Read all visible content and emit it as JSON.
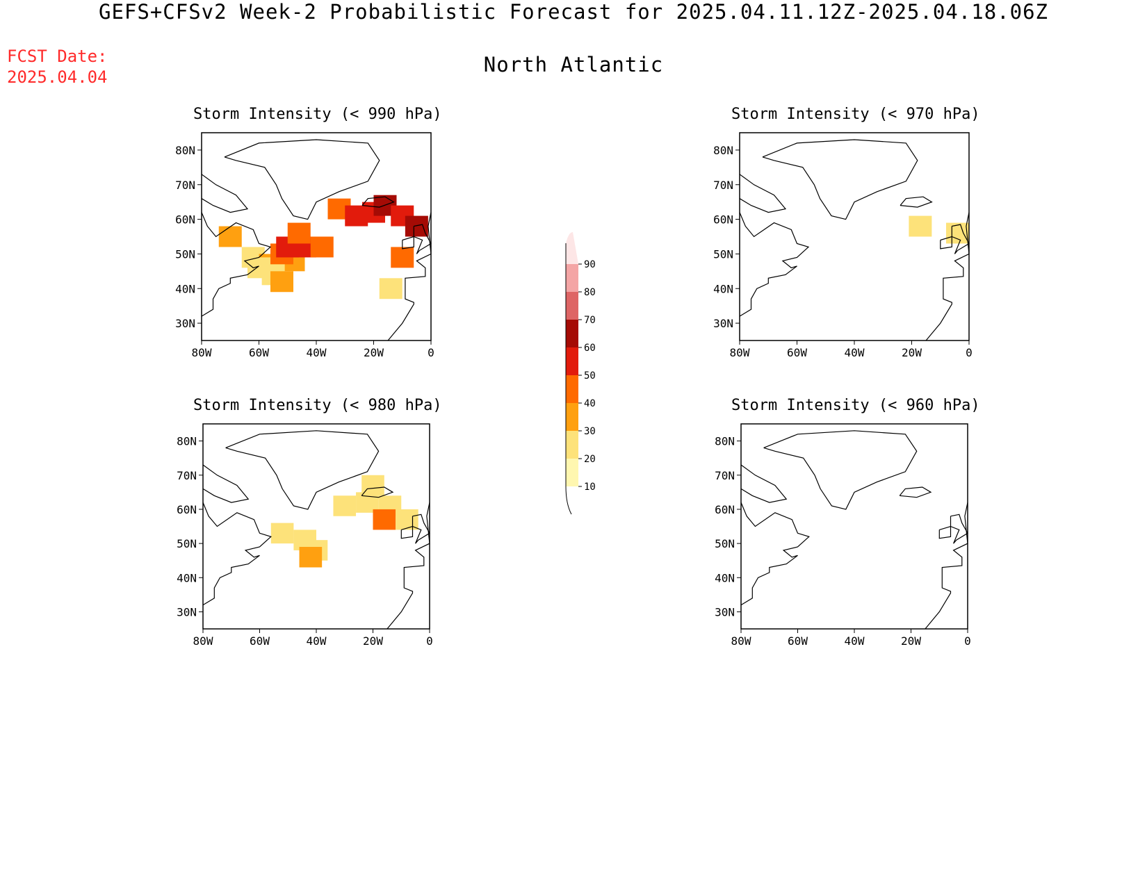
{
  "header": {
    "title": "GEFS+CFSv2 Week-2 Probabilistic Forecast for 2025.04.11.12Z-2025.04.18.06Z",
    "subtitle": "North Atlantic",
    "fcst_label": "FCST Date:",
    "fcst_date": "2025.04.04"
  },
  "panels": [
    {
      "id": "p990",
      "title": "Storm Intensity (< 990 hPa)"
    },
    {
      "id": "p970",
      "title": "Storm Intensity (< 970 hPa)"
    },
    {
      "id": "p980",
      "title": "Storm Intensity (< 980 hPa)"
    },
    {
      "id": "p960",
      "title": "Storm Intensity (< 960 hPa)"
    }
  ],
  "axes": {
    "lat_ticks": [
      "80N",
      "70N",
      "60N",
      "50N",
      "40N",
      "30N"
    ],
    "lon_ticks": [
      "80W",
      "60W",
      "40W",
      "20W",
      "0"
    ],
    "lat_range": [
      25,
      85
    ],
    "lon_range": [
      -80,
      0
    ]
  },
  "colorbar": {
    "levels": [
      "10",
      "20",
      "30",
      "40",
      "50",
      "60",
      "70",
      "80",
      "90"
    ],
    "colors": [
      "#fff7b0",
      "#fde27a",
      "#ffa010",
      "#ff6a00",
      "#e21b0c",
      "#a50b05",
      "#de6565",
      "#f4a5a5",
      "#fde6e6"
    ]
  },
  "map_data": {
    "p990": [
      {
        "lon": -62,
        "lat": 49,
        "level": 1
      },
      {
        "lon": -56,
        "lat": 47,
        "level": 2
      },
      {
        "lon": -48,
        "lat": 48,
        "level": 2
      },
      {
        "lon": -52,
        "lat": 50,
        "level": 3
      },
      {
        "lon": -50,
        "lat": 52,
        "level": 4
      },
      {
        "lon": -44,
        "lat": 52,
        "level": 4
      },
      {
        "lon": -38,
        "lat": 52,
        "level": 3
      },
      {
        "lon": -55,
        "lat": 44,
        "level": 1
      },
      {
        "lon": -52,
        "lat": 42,
        "level": 2
      },
      {
        "lon": -60,
        "lat": 46,
        "level": 1
      },
      {
        "lon": -46,
        "lat": 56,
        "level": 3
      },
      {
        "lon": -32,
        "lat": 63,
        "level": 3
      },
      {
        "lon": -26,
        "lat": 61,
        "level": 4
      },
      {
        "lon": -20,
        "lat": 62,
        "level": 4
      },
      {
        "lon": -16,
        "lat": 64,
        "level": 5
      },
      {
        "lon": -10,
        "lat": 61,
        "level": 4
      },
      {
        "lon": -5,
        "lat": 58,
        "level": 5
      },
      {
        "lon": -10,
        "lat": 49,
        "level": 3
      },
      {
        "lon": -14,
        "lat": 40,
        "level": 1
      },
      {
        "lon": -70,
        "lat": 55,
        "level": 2
      }
    ],
    "p970": [
      {
        "lon": -17,
        "lat": 58,
        "level": 1
      },
      {
        "lon": -4,
        "lat": 56,
        "level": 1
      }
    ],
    "p980": [
      {
        "lon": -52,
        "lat": 53,
        "level": 1
      },
      {
        "lon": -44,
        "lat": 51,
        "level": 1
      },
      {
        "lon": -40,
        "lat": 48,
        "level": 1
      },
      {
        "lon": -42,
        "lat": 46,
        "level": 2
      },
      {
        "lon": -30,
        "lat": 61,
        "level": 1
      },
      {
        "lon": -22,
        "lat": 62,
        "level": 1
      },
      {
        "lon": -14,
        "lat": 61,
        "level": 1
      },
      {
        "lon": -16,
        "lat": 57,
        "level": 3
      },
      {
        "lon": -8,
        "lat": 57,
        "level": 1
      },
      {
        "lon": -20,
        "lat": 67,
        "level": 1
      }
    ],
    "p960": []
  }
}
